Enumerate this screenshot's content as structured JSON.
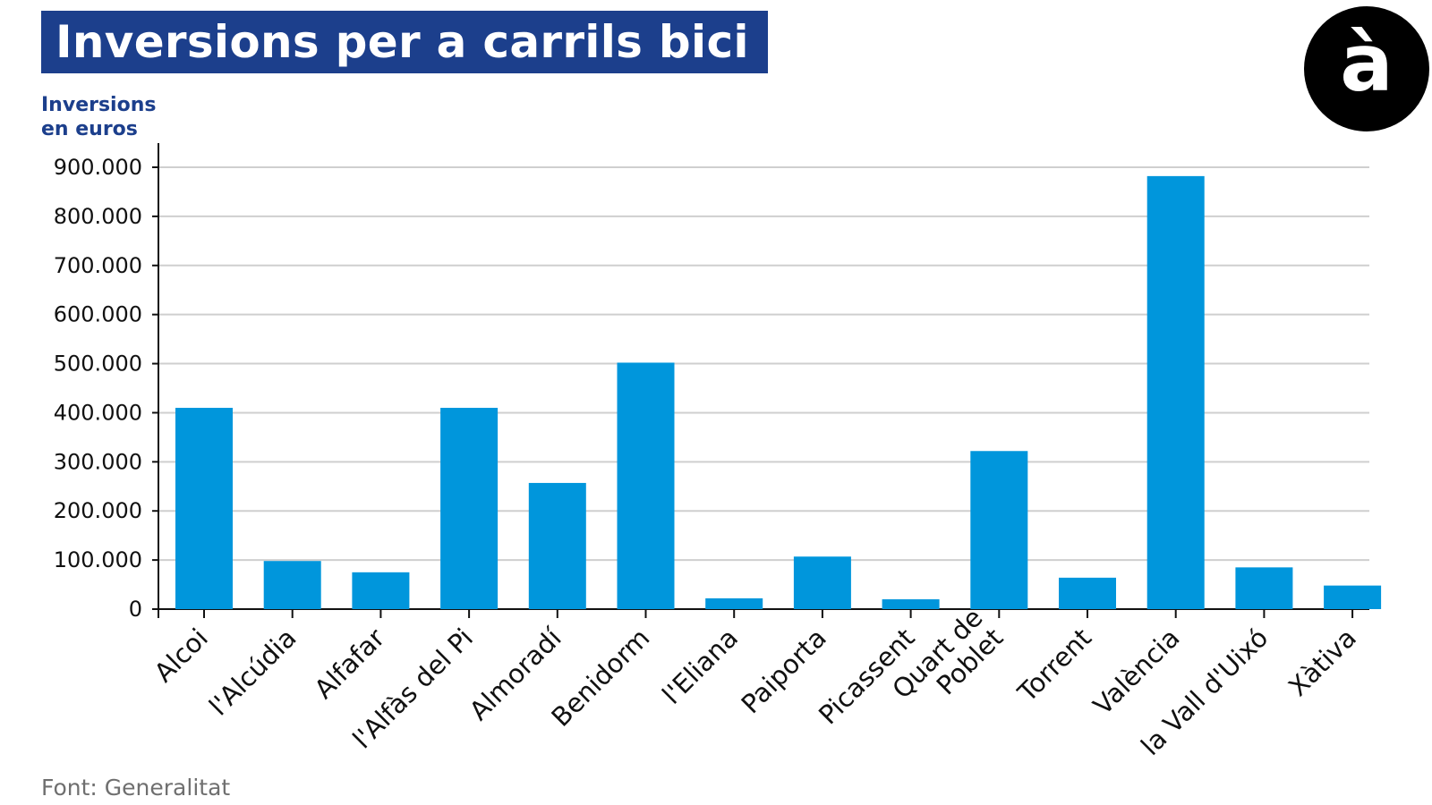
{
  "title": "Inversions per a carrils bici",
  "ylabel_lines": [
    "Inversions",
    "en euros"
  ],
  "source": "Font: Generalitat",
  "logo_glyph": "à",
  "colors": {
    "title_bg": "#1c3f8c",
    "bar": "#0096dc",
    "grid": "#cfcfcf",
    "axis": "#111111"
  },
  "chart_data": {
    "type": "bar",
    "title": "Inversions per a carrils bici",
    "ylabel": "Inversions en euros",
    "xlabel": "",
    "ylim": [
      0,
      900000
    ],
    "yticks": [
      0,
      100000,
      200000,
      300000,
      400000,
      500000,
      600000,
      700000,
      800000,
      900000
    ],
    "ytick_labels": [
      "0",
      "100.000",
      "200.000",
      "300.000",
      "400.000",
      "500.000",
      "600.000",
      "700.000",
      "800.000",
      "900.000"
    ],
    "grid": true,
    "categories": [
      [
        "Alcoi"
      ],
      [
        "l'Alcúdia"
      ],
      [
        "Alfafar"
      ],
      [
        "l'Alfàs del Pi"
      ],
      [
        "Almoradí"
      ],
      [
        "Benidorm"
      ],
      [
        "l'Eliana"
      ],
      [
        "Paiporta"
      ],
      [
        "Picassent"
      ],
      [
        "Quart de",
        "Poblet"
      ],
      [
        "Torrent"
      ],
      [
        "València"
      ],
      [
        "la Vall d'Uixó"
      ],
      [
        "Xàtiva"
      ]
    ],
    "values": [
      410000,
      98000,
      75000,
      410000,
      257000,
      502000,
      22000,
      107000,
      20000,
      322000,
      64000,
      882000,
      85000,
      48000
    ]
  }
}
